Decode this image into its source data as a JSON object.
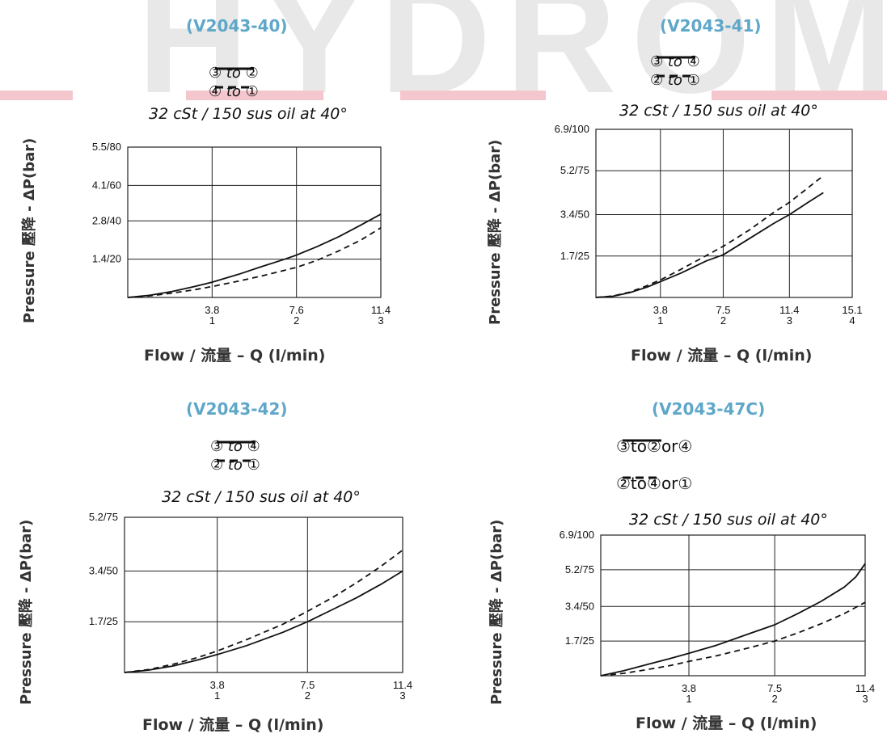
{
  "watermark": {
    "text": "HYDROMA"
  },
  "ylabel_text": "Pressure  壓降 - ΔP(bar)",
  "xlabel_text": "Flow / 流量 – Q (l/min)",
  "condition_text": "32 cSt / 150 sus oil at 40°",
  "colors": {
    "model": "#5fa7c9",
    "grid": "#222222",
    "line": "#111111"
  },
  "chart_data": [
    {
      "type": "line",
      "title": "(V2043-40)",
      "legend": [
        "③ to ②",
        "④ to ①"
      ],
      "xlabel": "Flow / 流量 – Q (l/min)",
      "ylabel": "Pressure  壓降 - ΔP(bar)",
      "xlim": [
        0,
        11.4
      ],
      "ylim": [
        0,
        5.5
      ],
      "x_ticks": [
        {
          "v": 3.8,
          "l1": "3.8",
          "l2": "1"
        },
        {
          "v": 7.6,
          "l1": "7.6",
          "l2": "2"
        },
        {
          "v": 11.4,
          "l1": "11.4",
          "l2": "3"
        }
      ],
      "y_ticks": [
        {
          "v": 1.4,
          "l": "1.4/20"
        },
        {
          "v": 2.8,
          "l": "2.8/40"
        },
        {
          "v": 4.1,
          "l": "4.1/60"
        },
        {
          "v": 5.5,
          "l": "5.5/80"
        }
      ],
      "series": [
        {
          "name": "③ to ②",
          "style": "solid",
          "x": [
            0,
            1,
            2,
            3,
            3.8,
            5,
            6,
            7,
            7.6,
            8.5,
            9.5,
            10.5,
            11.4
          ],
          "y": [
            0,
            0.08,
            0.22,
            0.4,
            0.56,
            0.85,
            1.12,
            1.38,
            1.55,
            1.85,
            2.22,
            2.65,
            3.05
          ]
        },
        {
          "name": "④ to ①",
          "style": "dashed",
          "x": [
            0,
            1,
            2,
            3,
            3.8,
            5,
            6,
            7,
            7.6,
            8.5,
            9.5,
            10.5,
            11.4
          ],
          "y": [
            0,
            0.06,
            0.16,
            0.28,
            0.4,
            0.6,
            0.78,
            0.98,
            1.1,
            1.35,
            1.7,
            2.1,
            2.55
          ]
        }
      ]
    },
    {
      "type": "line",
      "title": "(V2043-41)",
      "legend": [
        "③ to ④",
        "② to ①"
      ],
      "xlabel": "Flow / 流量 – Q (l/min)",
      "ylabel": "Pressure  壓降 - ΔP(bar)",
      "xlim": [
        0,
        15.1
      ],
      "ylim": [
        0,
        6.9
      ],
      "x_ticks": [
        {
          "v": 3.8,
          "l1": "3.8",
          "l2": "1"
        },
        {
          "v": 7.5,
          "l1": "7.5",
          "l2": "2"
        },
        {
          "v": 11.4,
          "l1": "11.4",
          "l2": "3"
        },
        {
          "v": 15.1,
          "l1": "15.1",
          "l2": "4"
        }
      ],
      "y_ticks": [
        {
          "v": 1.7,
          "l": "1.7/25"
        },
        {
          "v": 3.4,
          "l": "3.4/50"
        },
        {
          "v": 5.2,
          "l": "5.2/75"
        },
        {
          "v": 6.9,
          "l": "6.9/100"
        }
      ],
      "series": [
        {
          "name": "③ to ④",
          "style": "solid",
          "x": [
            0,
            1,
            2,
            3,
            3.8,
            5,
            6.5,
            7.5,
            9,
            10.5,
            11.4,
            12.5,
            13.4
          ],
          "y": [
            0,
            0.05,
            0.2,
            0.42,
            0.65,
            1.0,
            1.5,
            1.75,
            2.4,
            3.05,
            3.4,
            3.9,
            4.3
          ]
        },
        {
          "name": "② to ①",
          "style": "dashed",
          "x": [
            0,
            1,
            2,
            3,
            3.8,
            5,
            6.5,
            7.5,
            9,
            10.5,
            11.4,
            12.5,
            13.4
          ],
          "y": [
            0,
            0.06,
            0.22,
            0.48,
            0.72,
            1.15,
            1.72,
            2.1,
            2.75,
            3.5,
            3.9,
            4.5,
            5.0
          ]
        }
      ]
    },
    {
      "type": "line",
      "title": "(V2043-42)",
      "legend": [
        "③ to ④",
        "② to ①"
      ],
      "xlabel": "Flow / 流量 – Q (l/min)",
      "ylabel": "Pressure  壓降 - ΔP(bar)",
      "xlim": [
        0,
        11.4
      ],
      "ylim": [
        0,
        5.2
      ],
      "x_ticks": [
        {
          "v": 3.8,
          "l1": "3.8",
          "l2": "1"
        },
        {
          "v": 7.5,
          "l1": "7.5",
          "l2": "2"
        },
        {
          "v": 11.4,
          "l1": "11.4",
          "l2": "3"
        }
      ],
      "y_ticks": [
        {
          "v": 1.7,
          "l": "1.7/25"
        },
        {
          "v": 3.4,
          "l": "3.4/50"
        },
        {
          "v": 5.2,
          "l": "5.2/75"
        }
      ],
      "series": [
        {
          "name": "③ to ④",
          "style": "solid",
          "x": [
            0,
            1,
            2,
            3,
            3.8,
            5,
            6.5,
            7.5,
            8.5,
            9.5,
            10.5,
            11.4
          ],
          "y": [
            0,
            0.08,
            0.22,
            0.42,
            0.6,
            0.9,
            1.35,
            1.7,
            2.1,
            2.5,
            2.95,
            3.4
          ]
        },
        {
          "name": "② to ①",
          "style": "dashed",
          "x": [
            0,
            1,
            2,
            3,
            3.8,
            5,
            6.5,
            7.5,
            8.5,
            9.5,
            10.5,
            11.4
          ],
          "y": [
            0,
            0.1,
            0.28,
            0.5,
            0.72,
            1.1,
            1.62,
            2.05,
            2.5,
            3.0,
            3.55,
            4.1
          ]
        }
      ]
    },
    {
      "type": "line",
      "title": "(V2043-47C)",
      "legend": [
        "③to②or④",
        "②to④or①"
      ],
      "xlabel": "Flow / 流量 – Q (l/min)",
      "ylabel": "Pressure  壓降 - ΔP(bar)",
      "xlim": [
        0,
        11.4
      ],
      "ylim": [
        0,
        6.9
      ],
      "x_ticks": [
        {
          "v": 3.8,
          "l1": "3.8",
          "l2": "1"
        },
        {
          "v": 7.5,
          "l1": "7.5",
          "l2": "2"
        },
        {
          "v": 11.4,
          "l1": "11.4",
          "l2": "3"
        }
      ],
      "y_ticks": [
        {
          "v": 1.7,
          "l": "1.7/25"
        },
        {
          "v": 3.4,
          "l": "3.4/50"
        },
        {
          "v": 5.2,
          "l": "5.2/75"
        },
        {
          "v": 6.9,
          "l": "6.9/100"
        }
      ],
      "series": [
        {
          "name": "③to②or④",
          "style": "solid",
          "x": [
            0,
            1,
            2,
            3,
            3.8,
            5,
            6.5,
            7.5,
            8.5,
            9.5,
            10.5,
            11.0,
            11.4
          ],
          "y": [
            0,
            0.25,
            0.55,
            0.85,
            1.1,
            1.5,
            2.1,
            2.5,
            3.05,
            3.65,
            4.35,
            4.85,
            5.5
          ]
        },
        {
          "name": "②to④or①",
          "style": "dashed",
          "x": [
            0,
            1,
            2,
            3,
            3.8,
            5,
            6.5,
            7.5,
            8.5,
            9.5,
            10.5,
            11.4
          ],
          "y": [
            0,
            0.12,
            0.3,
            0.5,
            0.7,
            0.98,
            1.4,
            1.7,
            2.1,
            2.55,
            3.05,
            3.6
          ]
        }
      ]
    }
  ]
}
